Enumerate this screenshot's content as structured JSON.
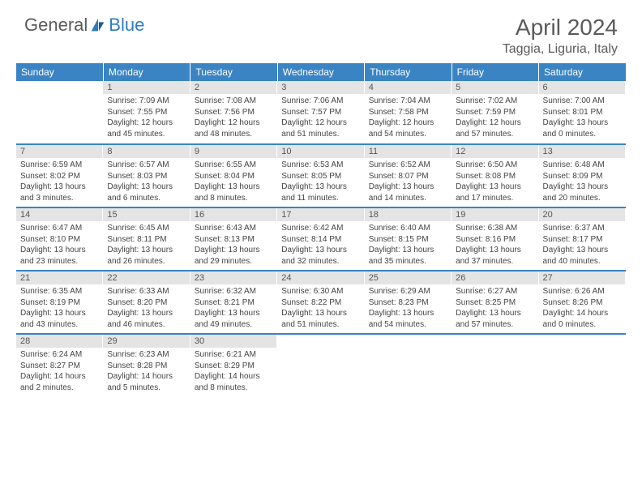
{
  "brand": {
    "part1": "General",
    "part2": "Blue"
  },
  "title": "April 2024",
  "location": "Taggia, Liguria, Italy",
  "headers": [
    "Sunday",
    "Monday",
    "Tuesday",
    "Wednesday",
    "Thursday",
    "Friday",
    "Saturday"
  ],
  "colors": {
    "header_bg": "#3a84c4",
    "daynum_bg": "#e4e4e4",
    "row_border": "#3a84c4",
    "logo_blue": "#2f7bbf",
    "text_gray": "#5a5a5a"
  },
  "weeks": [
    [
      {
        "n": "",
        "sr": "",
        "ss": "",
        "d1": "",
        "d2": ""
      },
      {
        "n": "1",
        "sr": "Sunrise: 7:09 AM",
        "ss": "Sunset: 7:55 PM",
        "d1": "Daylight: 12 hours",
        "d2": "and 45 minutes."
      },
      {
        "n": "2",
        "sr": "Sunrise: 7:08 AM",
        "ss": "Sunset: 7:56 PM",
        "d1": "Daylight: 12 hours",
        "d2": "and 48 minutes."
      },
      {
        "n": "3",
        "sr": "Sunrise: 7:06 AM",
        "ss": "Sunset: 7:57 PM",
        "d1": "Daylight: 12 hours",
        "d2": "and 51 minutes."
      },
      {
        "n": "4",
        "sr": "Sunrise: 7:04 AM",
        "ss": "Sunset: 7:58 PM",
        "d1": "Daylight: 12 hours",
        "d2": "and 54 minutes."
      },
      {
        "n": "5",
        "sr": "Sunrise: 7:02 AM",
        "ss": "Sunset: 7:59 PM",
        "d1": "Daylight: 12 hours",
        "d2": "and 57 minutes."
      },
      {
        "n": "6",
        "sr": "Sunrise: 7:00 AM",
        "ss": "Sunset: 8:01 PM",
        "d1": "Daylight: 13 hours",
        "d2": "and 0 minutes."
      }
    ],
    [
      {
        "n": "7",
        "sr": "Sunrise: 6:59 AM",
        "ss": "Sunset: 8:02 PM",
        "d1": "Daylight: 13 hours",
        "d2": "and 3 minutes."
      },
      {
        "n": "8",
        "sr": "Sunrise: 6:57 AM",
        "ss": "Sunset: 8:03 PM",
        "d1": "Daylight: 13 hours",
        "d2": "and 6 minutes."
      },
      {
        "n": "9",
        "sr": "Sunrise: 6:55 AM",
        "ss": "Sunset: 8:04 PM",
        "d1": "Daylight: 13 hours",
        "d2": "and 8 minutes."
      },
      {
        "n": "10",
        "sr": "Sunrise: 6:53 AM",
        "ss": "Sunset: 8:05 PM",
        "d1": "Daylight: 13 hours",
        "d2": "and 11 minutes."
      },
      {
        "n": "11",
        "sr": "Sunrise: 6:52 AM",
        "ss": "Sunset: 8:07 PM",
        "d1": "Daylight: 13 hours",
        "d2": "and 14 minutes."
      },
      {
        "n": "12",
        "sr": "Sunrise: 6:50 AM",
        "ss": "Sunset: 8:08 PM",
        "d1": "Daylight: 13 hours",
        "d2": "and 17 minutes."
      },
      {
        "n": "13",
        "sr": "Sunrise: 6:48 AM",
        "ss": "Sunset: 8:09 PM",
        "d1": "Daylight: 13 hours",
        "d2": "and 20 minutes."
      }
    ],
    [
      {
        "n": "14",
        "sr": "Sunrise: 6:47 AM",
        "ss": "Sunset: 8:10 PM",
        "d1": "Daylight: 13 hours",
        "d2": "and 23 minutes."
      },
      {
        "n": "15",
        "sr": "Sunrise: 6:45 AM",
        "ss": "Sunset: 8:11 PM",
        "d1": "Daylight: 13 hours",
        "d2": "and 26 minutes."
      },
      {
        "n": "16",
        "sr": "Sunrise: 6:43 AM",
        "ss": "Sunset: 8:13 PM",
        "d1": "Daylight: 13 hours",
        "d2": "and 29 minutes."
      },
      {
        "n": "17",
        "sr": "Sunrise: 6:42 AM",
        "ss": "Sunset: 8:14 PM",
        "d1": "Daylight: 13 hours",
        "d2": "and 32 minutes."
      },
      {
        "n": "18",
        "sr": "Sunrise: 6:40 AM",
        "ss": "Sunset: 8:15 PM",
        "d1": "Daylight: 13 hours",
        "d2": "and 35 minutes."
      },
      {
        "n": "19",
        "sr": "Sunrise: 6:38 AM",
        "ss": "Sunset: 8:16 PM",
        "d1": "Daylight: 13 hours",
        "d2": "and 37 minutes."
      },
      {
        "n": "20",
        "sr": "Sunrise: 6:37 AM",
        "ss": "Sunset: 8:17 PM",
        "d1": "Daylight: 13 hours",
        "d2": "and 40 minutes."
      }
    ],
    [
      {
        "n": "21",
        "sr": "Sunrise: 6:35 AM",
        "ss": "Sunset: 8:19 PM",
        "d1": "Daylight: 13 hours",
        "d2": "and 43 minutes."
      },
      {
        "n": "22",
        "sr": "Sunrise: 6:33 AM",
        "ss": "Sunset: 8:20 PM",
        "d1": "Daylight: 13 hours",
        "d2": "and 46 minutes."
      },
      {
        "n": "23",
        "sr": "Sunrise: 6:32 AM",
        "ss": "Sunset: 8:21 PM",
        "d1": "Daylight: 13 hours",
        "d2": "and 49 minutes."
      },
      {
        "n": "24",
        "sr": "Sunrise: 6:30 AM",
        "ss": "Sunset: 8:22 PM",
        "d1": "Daylight: 13 hours",
        "d2": "and 51 minutes."
      },
      {
        "n": "25",
        "sr": "Sunrise: 6:29 AM",
        "ss": "Sunset: 8:23 PM",
        "d1": "Daylight: 13 hours",
        "d2": "and 54 minutes."
      },
      {
        "n": "26",
        "sr": "Sunrise: 6:27 AM",
        "ss": "Sunset: 8:25 PM",
        "d1": "Daylight: 13 hours",
        "d2": "and 57 minutes."
      },
      {
        "n": "27",
        "sr": "Sunrise: 6:26 AM",
        "ss": "Sunset: 8:26 PM",
        "d1": "Daylight: 14 hours",
        "d2": "and 0 minutes."
      }
    ],
    [
      {
        "n": "28",
        "sr": "Sunrise: 6:24 AM",
        "ss": "Sunset: 8:27 PM",
        "d1": "Daylight: 14 hours",
        "d2": "and 2 minutes."
      },
      {
        "n": "29",
        "sr": "Sunrise: 6:23 AM",
        "ss": "Sunset: 8:28 PM",
        "d1": "Daylight: 14 hours",
        "d2": "and 5 minutes."
      },
      {
        "n": "30",
        "sr": "Sunrise: 6:21 AM",
        "ss": "Sunset: 8:29 PM",
        "d1": "Daylight: 14 hours",
        "d2": "and 8 minutes."
      },
      {
        "n": "",
        "sr": "",
        "ss": "",
        "d1": "",
        "d2": ""
      },
      {
        "n": "",
        "sr": "",
        "ss": "",
        "d1": "",
        "d2": ""
      },
      {
        "n": "",
        "sr": "",
        "ss": "",
        "d1": "",
        "d2": ""
      },
      {
        "n": "",
        "sr": "",
        "ss": "",
        "d1": "",
        "d2": ""
      }
    ]
  ]
}
